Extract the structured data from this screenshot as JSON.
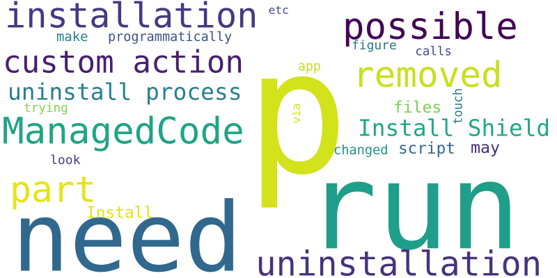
{
  "words": [
    {
      "key": "p",
      "text": "p",
      "color": "#d2e21b"
    },
    {
      "key": "run",
      "text": "run",
      "color": "#1f9e89"
    },
    {
      "key": "need",
      "text": "need",
      "color": "#31688e"
    },
    {
      "key": "installation",
      "text": "installation",
      "color": "#443983"
    },
    {
      "key": "possible",
      "text": "possible",
      "color": "#440154"
    },
    {
      "key": "custom_action",
      "text": "custom action",
      "color": "#481f70"
    },
    {
      "key": "removed",
      "text": "removed",
      "color": "#c8e020"
    },
    {
      "key": "uninstall_process",
      "text": "uninstall process",
      "color": "#277f8e"
    },
    {
      "key": "managedcode",
      "text": "ManagedCode",
      "color": "#20a486"
    },
    {
      "key": "install_shield",
      "text": "Install Shield",
      "color": "#22a785"
    },
    {
      "key": "part",
      "text": "part",
      "color": "#e5e419"
    },
    {
      "key": "uninstallation",
      "text": "uninstallation",
      "color": "#46327e"
    },
    {
      "key": "etc",
      "text": "etc",
      "color": "#3e4a89"
    },
    {
      "key": "make",
      "text": "make",
      "color": "#297b8e"
    },
    {
      "key": "programmatically",
      "text": "programmatically",
      "color": "#3b518b"
    },
    {
      "key": "figure",
      "text": "figure",
      "color": "#2a788e"
    },
    {
      "key": "calls",
      "text": "calls",
      "color": "#3e4a89"
    },
    {
      "key": "app",
      "text": "app",
      "color": "#c2df23"
    },
    {
      "key": "trying",
      "text": "trying",
      "color": "#84d44b"
    },
    {
      "key": "files",
      "text": "files",
      "color": "#7ad151"
    },
    {
      "key": "via",
      "text": "via",
      "color": "#d2e21b"
    },
    {
      "key": "touch",
      "text": "touch",
      "color": "#2a788e"
    },
    {
      "key": "script",
      "text": "script",
      "color": "#31688e"
    },
    {
      "key": "may",
      "text": "may",
      "color": "#472d7b"
    },
    {
      "key": "changed",
      "text": "changed",
      "color": "#21918c"
    },
    {
      "key": "look",
      "text": "look",
      "color": "#433e85"
    },
    {
      "key": "install",
      "text": "Install",
      "color": "#e2e418"
    }
  ]
}
